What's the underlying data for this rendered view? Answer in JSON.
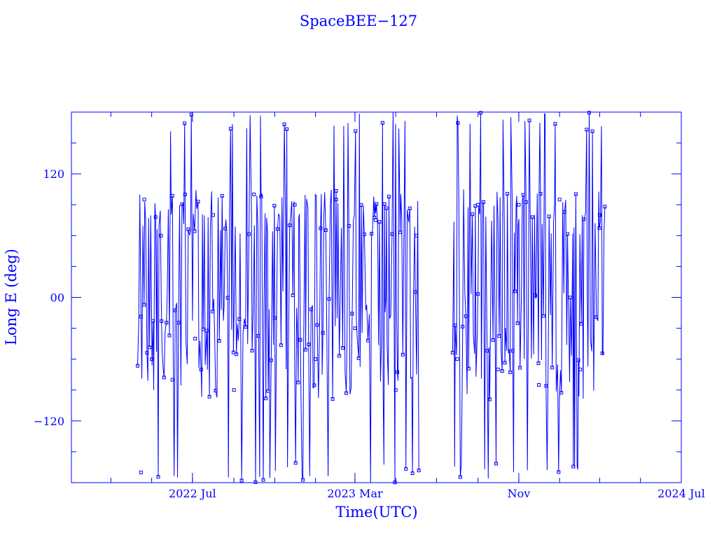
{
  "chart_data": {
    "type": "scatter",
    "connected": true,
    "title": "SpaceBEE−127",
    "xlabel": "Time(UTC)",
    "ylabel": "Long E (deg)",
    "ylim": [
      -180,
      180
    ],
    "xlim": [
      "2022-01-01",
      "2024-07-01"
    ],
    "x_ticks": [
      {
        "label": "2022 Jul",
        "date": "2022-07-01"
      },
      {
        "label": "2023 Mar",
        "date": "2023-03-01"
      },
      {
        "label": "Nov",
        "date": "2023-11-01"
      },
      {
        "label": "2024 Jul",
        "date": "2024-07-01"
      }
    ],
    "y_ticks": [
      {
        "label": "−120",
        "value": -120
      },
      {
        "label": "00",
        "value": 0
      },
      {
        "label": "120",
        "value": 120
      }
    ],
    "series": [
      {
        "color": "#0000ff",
        "marker": "square",
        "segments": [
          {
            "start": "2022-04-10",
            "end": "2023-06-05"
          },
          {
            "start": "2023-07-25",
            "end": "2024-03-10"
          }
        ],
        "points": [
          {
            "date": "2022-04-15",
            "value": -170
          },
          {
            "date": "2022-04-20",
            "value": 95
          },
          {
            "date": "2022-05-01",
            "value": -60
          },
          {
            "date": "2022-05-15",
            "value": 60
          },
          {
            "date": "2022-06-01",
            "value": -80
          },
          {
            "date": "2022-06-20",
            "value": 100
          },
          {
            "date": "2022-07-05",
            "value": -40
          },
          {
            "date": "2022-08-01",
            "value": 80
          },
          {
            "date": "2022-09-01",
            "value": -90
          },
          {
            "date": "2022-10-01",
            "value": 100
          },
          {
            "date": "2022-11-01",
            "value": -20
          },
          {
            "date": "2022-12-01",
            "value": 90
          },
          {
            "date": "2023-01-01",
            "value": -60
          },
          {
            "date": "2023-02-01",
            "value": 95
          },
          {
            "date": "2023-03-01",
            "value": -30
          },
          {
            "date": "2023-04-01",
            "value": 75
          },
          {
            "date": "2023-05-01",
            "value": -90
          },
          {
            "date": "2023-06-01",
            "value": 60
          },
          {
            "date": "2023-08-01",
            "value": -60
          },
          {
            "date": "2023-09-01",
            "value": 90
          },
          {
            "date": "2023-10-01",
            "value": -70
          },
          {
            "date": "2023-11-01",
            "value": 90
          },
          {
            "date": "2023-12-01",
            "value": -85
          },
          {
            "date": "2024-01-01",
            "value": 95
          },
          {
            "date": "2024-02-01",
            "value": -70
          },
          {
            "date": "2024-03-01",
            "value": 80
          }
        ]
      }
    ]
  }
}
